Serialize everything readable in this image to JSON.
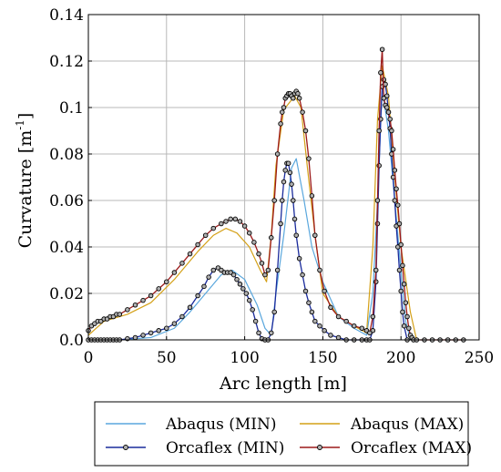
{
  "chart_data": {
    "type": "line",
    "xlabel": "Arc length [m]",
    "ylabel_main": "Curvature [m",
    "ylabel_sup": "-1",
    "ylabel_close": "]",
    "xlim": [
      0,
      250
    ],
    "ylim": [
      0,
      0.14
    ],
    "xticks": [
      0,
      50,
      100,
      150,
      200,
      250
    ],
    "xtick_labels": [
      "0",
      "50",
      "100",
      "150",
      "200",
      "250"
    ],
    "yticks": [
      0,
      0.02,
      0.04,
      0.06,
      0.08,
      0.1,
      0.12,
      0.14
    ],
    "ytick_labels": [
      "0.0",
      "0.02",
      "0.04",
      "0.06",
      "0.08",
      "0.1",
      "0.12",
      "0.14"
    ],
    "grid": true,
    "legend_position": "bottom",
    "series": [
      {
        "name": "Abaqus (MIN)",
        "color": "#5aa7dd",
        "marker": false,
        "x": [
          0,
          20,
          40,
          55,
          65,
          75,
          85,
          92,
          100,
          108,
          113,
          117,
          120,
          125,
          130,
          133,
          138,
          143,
          150,
          160,
          170,
          178,
          182,
          185,
          188,
          192,
          196,
          200,
          203,
          206
        ],
        "y": [
          0.0,
          0.0,
          0.001,
          0.005,
          0.012,
          0.02,
          0.028,
          0.03,
          0.026,
          0.015,
          0.005,
          0.002,
          0.02,
          0.045,
          0.074,
          0.078,
          0.06,
          0.04,
          0.025,
          0.01,
          0.005,
          0.002,
          0.02,
          0.06,
          0.108,
          0.09,
          0.06,
          0.03,
          0.008,
          0.0
        ]
      },
      {
        "name": "Abaqus (MAX)",
        "color": "#d4a017",
        "marker": false,
        "x": [
          0,
          10,
          25,
          40,
          55,
          70,
          80,
          88,
          95,
          103,
          110,
          114,
          117,
          120,
          125,
          132,
          136,
          140,
          145,
          150,
          160,
          170,
          178,
          182,
          185,
          188,
          192,
          196,
          200,
          206,
          210
        ],
        "y": [
          0.002,
          0.008,
          0.011,
          0.016,
          0.026,
          0.038,
          0.045,
          0.048,
          0.046,
          0.04,
          0.03,
          0.025,
          0.045,
          0.075,
          0.099,
          0.105,
          0.1,
          0.075,
          0.045,
          0.02,
          0.01,
          0.006,
          0.003,
          0.04,
          0.095,
          0.118,
          0.105,
          0.07,
          0.04,
          0.012,
          0.0
        ]
      },
      {
        "name": "Orcaflex (MIN)",
        "color": "#1a2b9c",
        "marker": true,
        "x": [
          0,
          2,
          4,
          6,
          8,
          10,
          12,
          14,
          16,
          18,
          20,
          25,
          30,
          35,
          40,
          45,
          50,
          55,
          60,
          65,
          70,
          74,
          77,
          80,
          83,
          85,
          87,
          89,
          91,
          93,
          95,
          97,
          99,
          101,
          103,
          105,
          107,
          109,
          111,
          113,
          115,
          117,
          119,
          121,
          123,
          124,
          125,
          126,
          127,
          128,
          129,
          130,
          131,
          132,
          133,
          135,
          137,
          139,
          141,
          143,
          145,
          148,
          151,
          155,
          160,
          165,
          170,
          175,
          178,
          180,
          182,
          184,
          185,
          186,
          187,
          188,
          189,
          190,
          191,
          192,
          193,
          194,
          195,
          196,
          197,
          198,
          199,
          200,
          201,
          202,
          204
        ],
        "y": [
          0.0,
          0.0,
          0.0,
          0.0,
          0.0,
          0.0,
          0.0,
          0.0,
          0.0,
          0.0,
          0.0,
          0.0005,
          0.001,
          0.002,
          0.003,
          0.004,
          0.005,
          0.007,
          0.01,
          0.014,
          0.019,
          0.023,
          0.027,
          0.03,
          0.031,
          0.03,
          0.029,
          0.029,
          0.029,
          0.028,
          0.026,
          0.024,
          0.022,
          0.02,
          0.017,
          0.013,
          0.008,
          0.003,
          0.0005,
          0.0,
          0.0,
          0.003,
          0.012,
          0.03,
          0.05,
          0.06,
          0.068,
          0.073,
          0.076,
          0.076,
          0.072,
          0.067,
          0.06,
          0.052,
          0.045,
          0.035,
          0.028,
          0.021,
          0.016,
          0.012,
          0.008,
          0.006,
          0.004,
          0.002,
          0.001,
          0.0,
          0.0,
          0.0,
          0.0,
          0.0,
          0.004,
          0.025,
          0.05,
          0.075,
          0.095,
          0.109,
          0.112,
          0.11,
          0.105,
          0.098,
          0.091,
          0.08,
          0.07,
          0.06,
          0.049,
          0.04,
          0.03,
          0.021,
          0.012,
          0.006,
          0.0
        ]
      },
      {
        "name": "Orcaflex (MAX)",
        "color": "#9c1a1a",
        "marker": true,
        "x": [
          0,
          2,
          4,
          6,
          8,
          10,
          12,
          14,
          16,
          18,
          20,
          25,
          30,
          35,
          40,
          45,
          50,
          55,
          60,
          65,
          70,
          75,
          80,
          85,
          88,
          91,
          94,
          97,
          100,
          103,
          106,
          109,
          111,
          113,
          115,
          117,
          119,
          121,
          123,
          124,
          125,
          126,
          127,
          128,
          129,
          130,
          131,
          132,
          133,
          134,
          135,
          137,
          139,
          141,
          143,
          145,
          148,
          151,
          155,
          160,
          165,
          170,
          175,
          178,
          180,
          182,
          184,
          185,
          186,
          187,
          188,
          189,
          190,
          191,
          192,
          193,
          194,
          195,
          196,
          197,
          198,
          199,
          200,
          201,
          202,
          203,
          204,
          205,
          206,
          207,
          208,
          210,
          215,
          220,
          225,
          230,
          235,
          240
        ],
        "y": [
          0.004,
          0.006,
          0.007,
          0.008,
          0.008,
          0.009,
          0.009,
          0.01,
          0.01,
          0.011,
          0.011,
          0.013,
          0.015,
          0.017,
          0.019,
          0.022,
          0.025,
          0.029,
          0.033,
          0.037,
          0.041,
          0.045,
          0.048,
          0.05,
          0.051,
          0.052,
          0.052,
          0.051,
          0.049,
          0.046,
          0.042,
          0.037,
          0.033,
          0.028,
          0.03,
          0.044,
          0.06,
          0.08,
          0.093,
          0.098,
          0.1,
          0.104,
          0.105,
          0.106,
          0.106,
          0.105,
          0.104,
          0.106,
          0.107,
          0.106,
          0.104,
          0.098,
          0.09,
          0.078,
          0.062,
          0.045,
          0.03,
          0.021,
          0.014,
          0.01,
          0.008,
          0.006,
          0.005,
          0.004,
          0.003,
          0.01,
          0.03,
          0.06,
          0.09,
          0.115,
          0.125,
          0.104,
          0.101,
          0.1,
          0.098,
          0.095,
          0.09,
          0.082,
          0.073,
          0.065,
          0.058,
          0.05,
          0.041,
          0.032,
          0.024,
          0.016,
          0.01,
          0.005,
          0.002,
          0.001,
          0.0,
          0.0,
          0.0,
          0.0,
          0.0,
          0.0,
          0.0,
          0.0
        ]
      }
    ],
    "legend": [
      {
        "label": "Abaqus (MIN)",
        "series": 0
      },
      {
        "label": "Abaqus (MAX)",
        "series": 1
      },
      {
        "label": "Orcaflex (MIN)",
        "series": 2
      },
      {
        "label": "Orcaflex (MAX)",
        "series": 3
      }
    ]
  }
}
